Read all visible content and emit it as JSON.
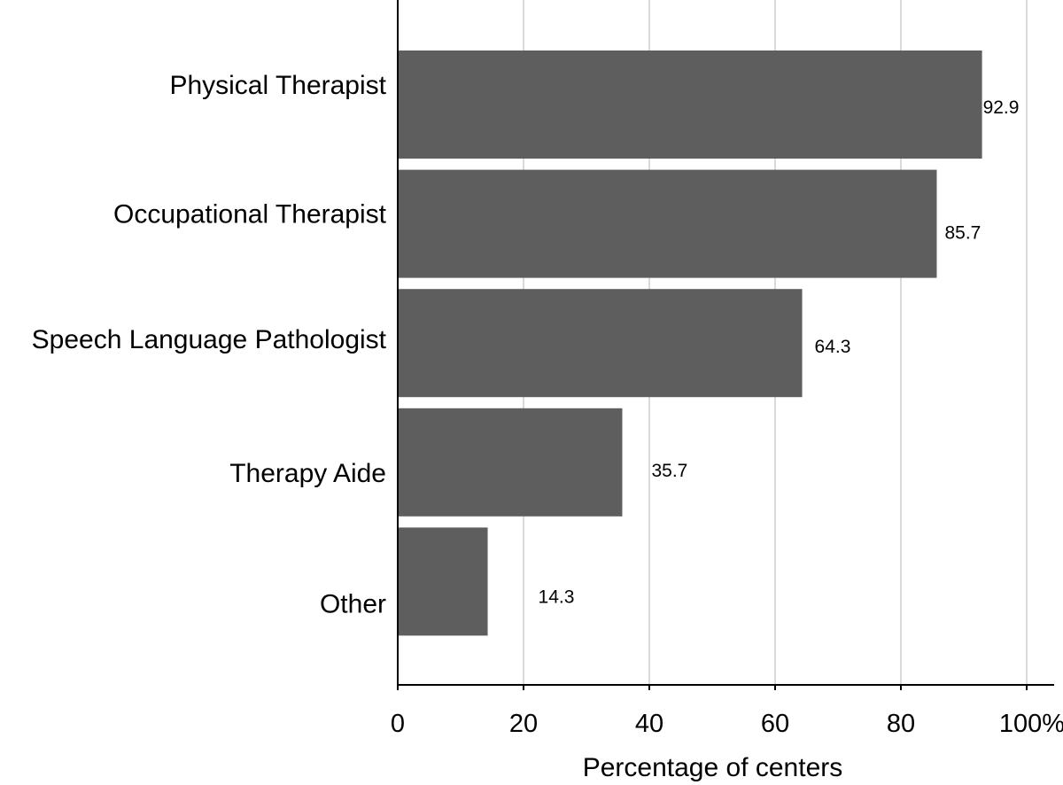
{
  "chart_data": {
    "type": "bar",
    "orientation": "horizontal",
    "categories": [
      "Physical Therapist",
      "Occupational Therapist",
      "Speech Language Pathologist",
      "Therapy Aide",
      "Other"
    ],
    "values": [
      92.9,
      85.7,
      64.3,
      35.7,
      14.3
    ],
    "value_labels": [
      "92.9",
      "85.7",
      "64.3",
      "35.7",
      "14.3"
    ],
    "xlabel": "Percentage of centers",
    "ylabel": "",
    "xlim": [
      0,
      100
    ],
    "xticks": [
      0,
      20,
      40,
      60,
      80,
      100
    ],
    "xtick_labels": [
      "0",
      "20",
      "40",
      "60",
      "80",
      "100%"
    ],
    "grid": "vertical",
    "legend": "none",
    "colors": {
      "bar": "#5e5e5e",
      "grid": "#d9d9d9",
      "axis": "#000000"
    }
  }
}
